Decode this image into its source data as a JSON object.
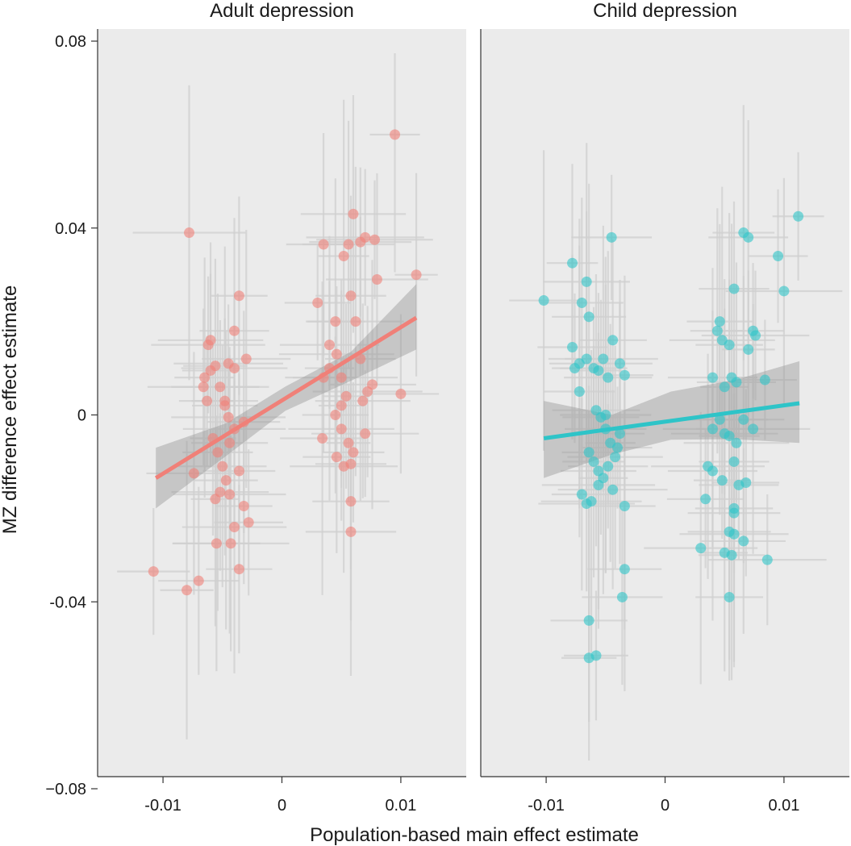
{
  "chart_data": {
    "type": "scatter",
    "xlabel": "Population-based main effect estimate",
    "ylabel": "MZ difference effect estimate",
    "ylim": [
      -0.08,
      0.08
    ],
    "xlim": [
      -0.0155,
      0.0155
    ],
    "y_ticks": [
      {
        "value": 0.08,
        "label": "0.08"
      },
      {
        "value": 0.04,
        "label": "0.04"
      },
      {
        "value": 0,
        "label": "0"
      },
      {
        "value": -0.04,
        "label": "-0.04"
      },
      {
        "value": -0.08,
        "label": "−0.08"
      }
    ],
    "x_ticks": [
      {
        "value": -0.01,
        "label": "-0.01"
      },
      {
        "value": 0,
        "label": "0"
      },
      {
        "value": 0.01,
        "label": "0.01"
      }
    ],
    "grid": false,
    "legend": "none",
    "colors": {
      "adult": "#f08078",
      "child": "#2ec4c8",
      "error_bars": "#cfcfcf",
      "ribbon": "#9a9a9a",
      "panel_background": "#ebebeb"
    },
    "panels": [
      {
        "title": "Adult depression",
        "fit": {
          "x": [
            -0.0106,
            0.0113
          ],
          "y": [
            -0.0135,
            0.0208
          ],
          "ci_x": [
            -0.0106,
            -0.0047,
            0.0003,
            0.0058,
            0.0113
          ],
          "ci_lower": [
            -0.02,
            -0.0088,
            0.0009,
            0.0073,
            0.014
          ],
          "ci_upper": [
            -0.007,
            -0.0018,
            0.0061,
            0.0135,
            0.028
          ]
        },
        "points": [
          {
            "x": -0.0078,
            "y": 0.039
          },
          {
            "x": -0.0108,
            "y": -0.0335
          },
          {
            "x": -0.008,
            "y": -0.0375
          },
          {
            "x": -0.007,
            "y": -0.0355
          },
          {
            "x": -0.0065,
            "y": 0.008
          },
          {
            "x": -0.0062,
            "y": 0.015
          },
          {
            "x": -0.006,
            "y": 0.0095
          },
          {
            "x": -0.0056,
            "y": 0.0105
          },
          {
            "x": -0.0052,
            "y": 0.006
          },
          {
            "x": -0.0048,
            "y": 0.002
          },
          {
            "x": -0.0045,
            "y": 0.011
          },
          {
            "x": -0.004,
            "y": 0.01
          },
          {
            "x": -0.0036,
            "y": 0.0255
          },
          {
            "x": -0.004,
            "y": 0.018
          },
          {
            "x": -0.003,
            "y": 0.012
          },
          {
            "x": -0.0063,
            "y": 0.003
          },
          {
            "x": -0.0058,
            "y": -0.005
          },
          {
            "x": -0.0054,
            "y": -0.008
          },
          {
            "x": -0.005,
            "y": -0.011
          },
          {
            "x": -0.0047,
            "y": -0.014
          },
          {
            "x": -0.0044,
            "y": -0.006
          },
          {
            "x": -0.004,
            "y": -0.003
          },
          {
            "x": -0.0036,
            "y": -0.012
          },
          {
            "x": -0.0032,
            "y": -0.0195
          },
          {
            "x": -0.0056,
            "y": -0.018
          },
          {
            "x": -0.0052,
            "y": -0.0165
          },
          {
            "x": -0.0044,
            "y": -0.017
          },
          {
            "x": -0.004,
            "y": -0.024
          },
          {
            "x": -0.0055,
            "y": -0.0275
          },
          {
            "x": -0.0043,
            "y": -0.0275
          },
          {
            "x": -0.0036,
            "y": -0.033
          },
          {
            "x": -0.0028,
            "y": -0.023
          },
          {
            "x": -0.0074,
            "y": -0.0125
          },
          {
            "x": -0.0066,
            "y": 0.006
          },
          {
            "x": -0.0048,
            "y": 0.003
          },
          {
            "x": -0.0032,
            "y": -0.0015
          },
          {
            "x": -0.0045,
            "y": -0.0005
          },
          {
            "x": -0.006,
            "y": 0.016
          },
          {
            "x": 0.0035,
            "y": 0.0365
          },
          {
            "x": 0.004,
            "y": 0.015
          },
          {
            "x": 0.0045,
            "y": 0.02
          },
          {
            "x": 0.0052,
            "y": 0.034
          },
          {
            "x": 0.0056,
            "y": 0.0365
          },
          {
            "x": 0.006,
            "y": 0.043
          },
          {
            "x": 0.0066,
            "y": 0.037
          },
          {
            "x": 0.007,
            "y": 0.038
          },
          {
            "x": 0.0078,
            "y": 0.0375
          },
          {
            "x": 0.008,
            "y": 0.029
          },
          {
            "x": 0.0095,
            "y": 0.06
          },
          {
            "x": 0.0113,
            "y": 0.03
          },
          {
            "x": 0.01,
            "y": 0.0045
          },
          {
            "x": 0.003,
            "y": 0.024
          },
          {
            "x": 0.0035,
            "y": 0.008
          },
          {
            "x": 0.004,
            "y": 0.01
          },
          {
            "x": 0.0046,
            "y": 0.013
          },
          {
            "x": 0.005,
            "y": 0.002
          },
          {
            "x": 0.0054,
            "y": 0.004
          },
          {
            "x": 0.0058,
            "y": 0.0255
          },
          {
            "x": 0.0062,
            "y": 0.02
          },
          {
            "x": 0.0068,
            "y": 0.003
          },
          {
            "x": 0.0072,
            "y": 0.005
          },
          {
            "x": 0.0076,
            "y": 0.0065
          },
          {
            "x": 0.0045,
            "y": 0.0
          },
          {
            "x": 0.005,
            "y": -0.003
          },
          {
            "x": 0.0056,
            "y": -0.006
          },
          {
            "x": 0.006,
            "y": -0.008
          },
          {
            "x": 0.0034,
            "y": -0.005
          },
          {
            "x": 0.0046,
            "y": -0.009
          },
          {
            "x": 0.0052,
            "y": -0.011
          },
          {
            "x": 0.0058,
            "y": -0.0105
          },
          {
            "x": 0.007,
            "y": -0.004
          },
          {
            "x": 0.0058,
            "y": -0.0185
          },
          {
            "x": 0.0058,
            "y": -0.025
          },
          {
            "x": 0.005,
            "y": 0.008
          },
          {
            "x": 0.0066,
            "y": 0.012
          }
        ]
      },
      {
        "title": "Child depression",
        "fit": {
          "x": [
            -0.0102,
            0.0113
          ],
          "y": [
            -0.005,
            0.0025
          ],
          "ci_x": [
            -0.0102,
            -0.0045,
            0.0005,
            0.0059,
            0.0113
          ],
          "ci_lower": [
            -0.0135,
            -0.0085,
            -0.0053,
            -0.0052,
            -0.006
          ],
          "ci_upper": [
            0.003,
            -0.0,
            0.005,
            0.0075,
            0.0115
          ]
        },
        "points": [
          {
            "x": -0.0102,
            "y": 0.0245
          },
          {
            "x": -0.0078,
            "y": 0.0325
          },
          {
            "x": -0.007,
            "y": 0.024
          },
          {
            "x": -0.0066,
            "y": 0.0285
          },
          {
            "x": -0.0064,
            "y": 0.021
          },
          {
            "x": -0.0045,
            "y": 0.038
          },
          {
            "x": -0.0078,
            "y": 0.0145
          },
          {
            "x": -0.0076,
            "y": 0.01
          },
          {
            "x": -0.0072,
            "y": 0.011
          },
          {
            "x": -0.0066,
            "y": 0.012
          },
          {
            "x": -0.006,
            "y": 0.01
          },
          {
            "x": -0.0056,
            "y": 0.0095
          },
          {
            "x": -0.0052,
            "y": 0.012
          },
          {
            "x": -0.0048,
            "y": 0.008
          },
          {
            "x": -0.0044,
            "y": 0.016
          },
          {
            "x": -0.0038,
            "y": 0.011
          },
          {
            "x": -0.0034,
            "y": 0.0085
          },
          {
            "x": -0.0072,
            "y": 0.005
          },
          {
            "x": -0.0058,
            "y": 0.001
          },
          {
            "x": -0.0054,
            "y": -0.0005
          },
          {
            "x": -0.005,
            "y": -0.003
          },
          {
            "x": -0.0046,
            "y": -0.006
          },
          {
            "x": -0.0042,
            "y": -0.009
          },
          {
            "x": -0.0038,
            "y": -0.004
          },
          {
            "x": -0.0064,
            "y": -0.008
          },
          {
            "x": -0.006,
            "y": -0.01
          },
          {
            "x": -0.0056,
            "y": -0.012
          },
          {
            "x": -0.0052,
            "y": -0.0135
          },
          {
            "x": -0.0048,
            "y": -0.011
          },
          {
            "x": -0.0044,
            "y": -0.016
          },
          {
            "x": -0.007,
            "y": -0.017
          },
          {
            "x": -0.0066,
            "y": -0.019
          },
          {
            "x": -0.0062,
            "y": -0.0185
          },
          {
            "x": -0.0056,
            "y": -0.015
          },
          {
            "x": -0.0034,
            "y": -0.0195
          },
          {
            "x": -0.0034,
            "y": -0.033
          },
          {
            "x": -0.0036,
            "y": -0.039
          },
          {
            "x": -0.0064,
            "y": -0.044
          },
          {
            "x": -0.0064,
            "y": -0.052
          },
          {
            "x": -0.0058,
            "y": -0.0515
          },
          {
            "x": -0.005,
            "y": 0.0
          },
          {
            "x": -0.004,
            "y": -0.007
          },
          {
            "x": 0.004,
            "y": 0.008
          },
          {
            "x": 0.0044,
            "y": 0.018
          },
          {
            "x": 0.0046,
            "y": 0.02
          },
          {
            "x": 0.0048,
            "y": 0.016
          },
          {
            "x": 0.0054,
            "y": 0.015
          },
          {
            "x": 0.0058,
            "y": 0.027
          },
          {
            "x": 0.0066,
            "y": 0.039
          },
          {
            "x": 0.007,
            "y": 0.038
          },
          {
            "x": 0.0076,
            "y": 0.017
          },
          {
            "x": 0.0095,
            "y": 0.034
          },
          {
            "x": 0.01,
            "y": 0.0265
          },
          {
            "x": 0.0112,
            "y": 0.0425
          },
          {
            "x": 0.005,
            "y": 0.006
          },
          {
            "x": 0.0056,
            "y": 0.008
          },
          {
            "x": 0.006,
            "y": 0.007
          },
          {
            "x": 0.007,
            "y": 0.014
          },
          {
            "x": 0.0074,
            "y": 0.018
          },
          {
            "x": 0.0084,
            "y": 0.0075
          },
          {
            "x": 0.004,
            "y": -0.003
          },
          {
            "x": 0.0046,
            "y": -0.001
          },
          {
            "x": 0.005,
            "y": -0.004
          },
          {
            "x": 0.0054,
            "y": -0.0045
          },
          {
            "x": 0.006,
            "y": -0.006
          },
          {
            "x": 0.0066,
            "y": -0.001
          },
          {
            "x": 0.0074,
            "y": -0.003
          },
          {
            "x": 0.0036,
            "y": -0.011
          },
          {
            "x": 0.004,
            "y": -0.012
          },
          {
            "x": 0.0048,
            "y": -0.014
          },
          {
            "x": 0.0058,
            "y": -0.01
          },
          {
            "x": 0.0062,
            "y": -0.015
          },
          {
            "x": 0.0068,
            "y": -0.0145
          },
          {
            "x": 0.0034,
            "y": -0.018
          },
          {
            "x": 0.0058,
            "y": -0.02
          },
          {
            "x": 0.0058,
            "y": -0.021
          },
          {
            "x": 0.0054,
            "y": -0.025
          },
          {
            "x": 0.0058,
            "y": -0.0255
          },
          {
            "x": 0.0066,
            "y": -0.027
          },
          {
            "x": 0.003,
            "y": -0.0285
          },
          {
            "x": 0.005,
            "y": -0.0295
          },
          {
            "x": 0.0056,
            "y": -0.03
          },
          {
            "x": 0.0086,
            "y": -0.031
          },
          {
            "x": 0.0054,
            "y": -0.039
          }
        ]
      }
    ]
  }
}
